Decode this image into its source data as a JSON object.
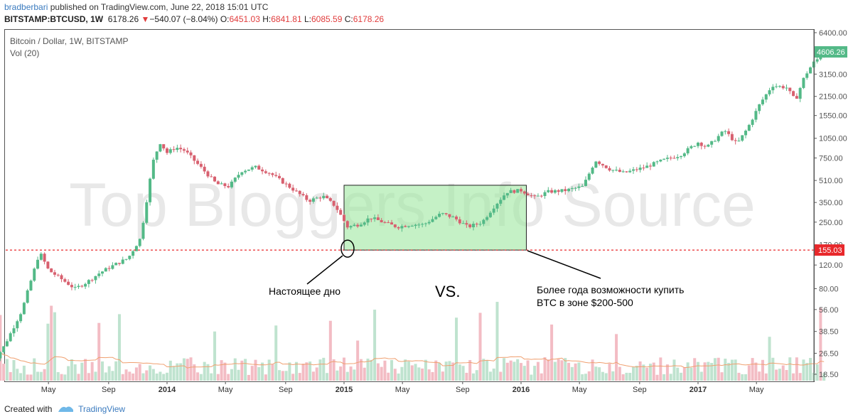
{
  "header": {
    "author": "bradberbari",
    "published": "published on TradingView.com, June 22, 2018 15:01 UTC",
    "symbol": "BITSTAMP:BTCUSD, 1W",
    "last": "6178.26",
    "down_glyph": "▼",
    "change": "−540.07 (−8.04%)",
    "o_label": "O:",
    "o": "6451.03",
    "h_label": "H:",
    "h": "6841.81",
    "l_label": "L:",
    "l": "6085.59",
    "c_label": "C:",
    "c": "6178.26"
  },
  "legend": {
    "title": "Bitcoin / Dollar, 1W, BITSTAMP",
    "vol": "Vol (20)"
  },
  "watermark": "Top Bloggers Info Source",
  "annotations": {
    "bottom_label": "Настоящее дно",
    "vs": "VS.",
    "zone_line1": "Более года возможности купить",
    "zone_line2": "BTC в зоне $200-500"
  },
  "footer": {
    "created": "Created with",
    "brand": "TradingView"
  },
  "colors": {
    "up": "#53b987",
    "down": "#d8606f",
    "vol_up": "#bfe3cf",
    "vol_down": "#f3bcc4",
    "ma": "#f0a070",
    "zone": "#9ee8a0",
    "dashed": "#e8282b"
  },
  "chart_data": {
    "type": "candlestick",
    "title": "Bitcoin / Dollar, 1W, BITSTAMP",
    "y_scale": "log",
    "y_ticks": [
      "6400.00",
      "4606.26",
      "3150.00",
      "2150.00",
      "1550.00",
      "1050.00",
      "750.00",
      "510.00",
      "350.00",
      "250.00",
      "170.00",
      "155.03",
      "120.00",
      "80.00",
      "56.00",
      "38.50",
      "26.50",
      "18.50"
    ],
    "x_ticks": [
      "May",
      "Sep",
      "2014",
      "May",
      "Sep",
      "2015",
      "May",
      "Sep",
      "2016",
      "May",
      "Sep",
      "2017",
      "May"
    ],
    "current_price_label": "4606.26",
    "support_label": "155.03",
    "support_level": 155.03,
    "zone": {
      "low": 155.03,
      "high": 470,
      "start": "2015-01",
      "end": "2016-01"
    },
    "price_path": [
      [
        2013.0,
        21
      ],
      [
        2013.08,
        30
      ],
      [
        2013.18,
        55
      ],
      [
        2013.28,
        150
      ],
      [
        2013.33,
        110
      ],
      [
        2013.4,
        95
      ],
      [
        2013.48,
        80
      ],
      [
        2013.55,
        90
      ],
      [
        2013.62,
        105
      ],
      [
        2013.7,
        120
      ],
      [
        2013.78,
        135
      ],
      [
        2013.85,
        190
      ],
      [
        2013.92,
        700
      ],
      [
        2013.96,
        980
      ],
      [
        2014.0,
        820
      ],
      [
        2014.05,
        900
      ],
      [
        2014.1,
        850
      ],
      [
        2014.2,
        620
      ],
      [
        2014.28,
        480
      ],
      [
        2014.35,
        460
      ],
      [
        2014.42,
        600
      ],
      [
        2014.5,
        640
      ],
      [
        2014.58,
        580
      ],
      [
        2014.65,
        500
      ],
      [
        2014.72,
        430
      ],
      [
        2014.8,
        360
      ],
      [
        2014.88,
        390
      ],
      [
        2014.95,
        330
      ],
      [
        2015.02,
        230
      ],
      [
        2015.08,
        240
      ],
      [
        2015.15,
        270
      ],
      [
        2015.22,
        250
      ],
      [
        2015.3,
        230
      ],
      [
        2015.38,
        240
      ],
      [
        2015.45,
        240
      ],
      [
        2015.55,
        290
      ],
      [
        2015.62,
        270
      ],
      [
        2015.7,
        230
      ],
      [
        2015.78,
        250
      ],
      [
        2015.85,
        330
      ],
      [
        2015.92,
        420
      ],
      [
        2016.0,
        430
      ],
      [
        2016.08,
        380
      ],
      [
        2016.15,
        420
      ],
      [
        2016.25,
        430
      ],
      [
        2016.35,
        460
      ],
      [
        2016.42,
        720
      ],
      [
        2016.5,
        620
      ],
      [
        2016.58,
        580
      ],
      [
        2016.7,
        640
      ],
      [
        2016.8,
        720
      ],
      [
        2016.9,
        790
      ],
      [
        2017.0,
        980
      ],
      [
        2017.05,
        900
      ],
      [
        2017.15,
        1200
      ],
      [
        2017.22,
        950
      ],
      [
        2017.28,
        1250
      ],
      [
        2017.35,
        1900
      ],
      [
        2017.42,
        2600
      ],
      [
        2017.5,
        2500
      ],
      [
        2017.55,
        2000
      ],
      [
        2017.6,
        3000
      ],
      [
        2017.65,
        3800
      ],
      [
        2017.72,
        4600
      ]
    ]
  }
}
